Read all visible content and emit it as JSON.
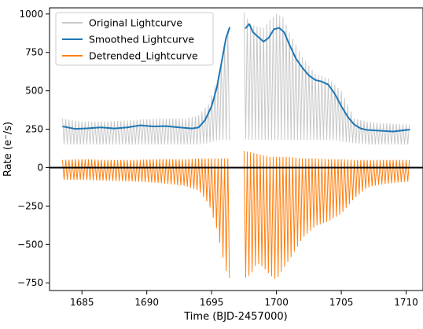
{
  "chart_data": {
    "type": "line",
    "title": "",
    "xlabel": "Time (BJD-2457000)",
    "ylabel": "Rate (e⁻/s)",
    "xlim": [
      1682.5,
      1711.3
    ],
    "ylim": [
      -800,
      1040
    ],
    "x_ticks": [
      1685,
      1690,
      1695,
      1700,
      1705,
      1710
    ],
    "y_ticks": [
      -750,
      -500,
      -250,
      0,
      250,
      500,
      750,
      1000
    ],
    "grid": false,
    "legend_position": "top-left",
    "zero_line": {
      "y": 0,
      "color": "#000000"
    },
    "data_gap": [
      1696.4,
      1697.5
    ],
    "series": [
      {
        "name": "Original Lightcurve",
        "color": "#c8c8c8",
        "style": "oscillating band between lower and upper envelope",
        "x": [
          1683.5,
          1685,
          1687,
          1689,
          1691,
          1693,
          1694,
          1694.8,
          1695.5,
          1696,
          1696.4,
          1697.5,
          1698,
          1698.5,
          1699,
          1699.5,
          1700,
          1700.5,
          1701,
          1702,
          1703,
          1704,
          1705,
          1706,
          1707,
          1708,
          1709,
          1710.3
        ],
        "upper": [
          320,
          300,
          300,
          310,
          320,
          320,
          340,
          420,
          600,
          800,
          950,
          1010,
          930,
          920,
          910,
          960,
          1000,
          980,
          880,
          720,
          610,
          580,
          500,
          320,
          300,
          290,
          285,
          280
        ],
        "lower": [
          150,
          150,
          150,
          150,
          150,
          150,
          150,
          160,
          180,
          180,
          180,
          190,
          180,
          180,
          180,
          180,
          180,
          180,
          180,
          180,
          180,
          180,
          170,
          160,
          150,
          150,
          150,
          150
        ]
      },
      {
        "name": "Smoothed Lightcurve",
        "color": "#1f77b4",
        "x": [
          1683.5,
          1684.5,
          1685.5,
          1686.5,
          1687.5,
          1688.5,
          1689.5,
          1690.5,
          1691.5,
          1692.5,
          1693.5,
          1694,
          1694.5,
          1695,
          1695.4,
          1695.8,
          1696.1,
          1696.4,
          1697.6,
          1697.9,
          1698.2,
          1698.6,
          1699.0,
          1699.4,
          1699.8,
          1700.2,
          1700.6,
          1701.0,
          1701.5,
          1702.0,
          1702.5,
          1703.0,
          1703.5,
          1704.0,
          1704.5,
          1705.0,
          1705.5,
          1706.0,
          1706.5,
          1707.0,
          1708.0,
          1709.0,
          1710.3
        ],
        "y": [
          268,
          252,
          256,
          262,
          255,
          262,
          275,
          268,
          270,
          262,
          255,
          262,
          310,
          400,
          520,
          700,
          840,
          915,
          905,
          935,
          880,
          850,
          820,
          845,
          900,
          910,
          880,
          800,
          710,
          650,
          600,
          570,
          560,
          540,
          480,
          400,
          330,
          280,
          255,
          245,
          240,
          235,
          248
        ]
      },
      {
        "name": "Detrended_Lightcurve",
        "color": "#ff7f0e",
        "style": "oscillating band between lower and upper envelope",
        "x": [
          1683.5,
          1685,
          1687,
          1689,
          1691,
          1693,
          1694,
          1694.8,
          1695.4,
          1695.8,
          1696.2,
          1696.4,
          1697.5,
          1698,
          1698.5,
          1699,
          1699.5,
          1700,
          1700.5,
          1701,
          1702,
          1703,
          1704,
          1705,
          1706,
          1707,
          1708,
          1709,
          1710.3
        ],
        "upper": [
          50,
          55,
          50,
          50,
          55,
          55,
          60,
          60,
          60,
          60,
          60,
          60,
          110,
          100,
          90,
          80,
          70,
          70,
          70,
          70,
          60,
          60,
          55,
          55,
          50,
          50,
          50,
          50,
          50
        ],
        "lower": [
          -80,
          -80,
          -85,
          -90,
          -100,
          -120,
          -150,
          -240,
          -400,
          -560,
          -700,
          -720,
          -720,
          -700,
          -620,
          -650,
          -700,
          -730,
          -660,
          -600,
          -460,
          -380,
          -350,
          -300,
          -200,
          -130,
          -110,
          -100,
          -90
        ]
      }
    ]
  }
}
